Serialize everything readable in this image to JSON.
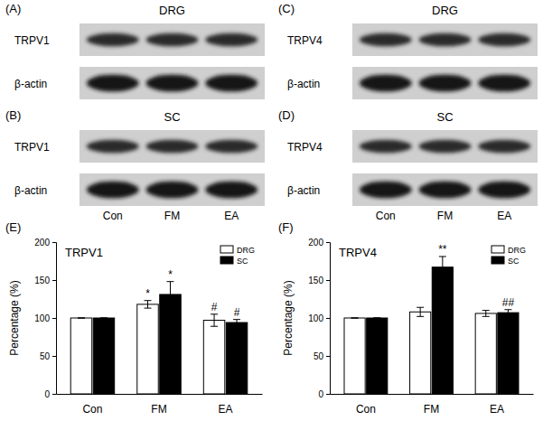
{
  "blots": [
    {
      "label": "(A)",
      "title": "DRG",
      "rows": [
        "TRPV1",
        "β-actin"
      ]
    },
    {
      "label": "(B)",
      "title": "SC",
      "rows": [
        "TRPV1",
        "β-actin"
      ]
    },
    {
      "label": "(C)",
      "title": "DRG",
      "rows": [
        "TRPV4",
        "β-actin"
      ]
    },
    {
      "label": "(D)",
      "title": "SC",
      "rows": [
        "TRPV4",
        "β-actin"
      ]
    }
  ],
  "lanes": [
    "Con",
    "FM",
    "EA"
  ],
  "chart_data": [
    {
      "type": "bar",
      "panel_label": "(E)",
      "title": "TRPV1",
      "ylabel": "Percentage (%)",
      "categories": [
        "Con",
        "FM",
        "EA"
      ],
      "series": [
        {
          "name": "DRG",
          "color": "#ffffff",
          "values": [
            100,
            118,
            97
          ],
          "errors": [
            0,
            5,
            8
          ],
          "annotations": [
            null,
            "*",
            "#"
          ]
        },
        {
          "name": "SC",
          "color": "#000000",
          "values": [
            100,
            131,
            94
          ],
          "errors": [
            0,
            17,
            4
          ],
          "annotations": [
            null,
            "*",
            "#"
          ]
        }
      ],
      "ylim": [
        0,
        200
      ],
      "yticks": [
        0,
        50,
        100,
        150,
        200
      ],
      "legend": "top-right"
    },
    {
      "type": "bar",
      "panel_label": "(F)",
      "title": "TRPV4",
      "ylabel": "Percentage (%)",
      "categories": [
        "Con",
        "FM",
        "EA"
      ],
      "series": [
        {
          "name": "DRG",
          "color": "#ffffff",
          "values": [
            100,
            108,
            106
          ],
          "errors": [
            0,
            6,
            4
          ],
          "annotations": [
            null,
            null,
            null
          ]
        },
        {
          "name": "SC",
          "color": "#000000",
          "values": [
            100,
            167,
            107
          ],
          "errors": [
            0,
            14,
            4
          ],
          "annotations": [
            null,
            "**",
            "##"
          ]
        }
      ],
      "ylim": [
        0,
        200
      ],
      "yticks": [
        0,
        50,
        100,
        150,
        200
      ],
      "legend": "top-right"
    }
  ]
}
